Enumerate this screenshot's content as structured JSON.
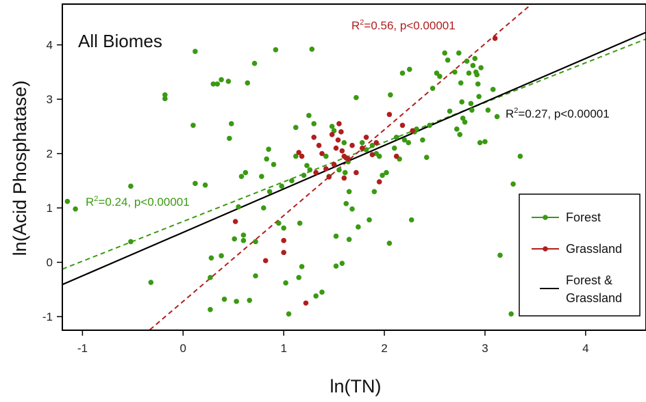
{
  "chart_data": {
    "type": "scatter",
    "title": "All Biomes",
    "xlabel": "ln(TN)",
    "ylabel": "ln(Acid Phosphatase)",
    "xlim": [
      -1.2,
      4.6
    ],
    "ylim": [
      -1.25,
      4.75
    ],
    "x_ticks": [
      "-1",
      "0",
      "1",
      "2",
      "3",
      "4"
    ],
    "y_ticks": [
      "-1",
      "0",
      "1",
      "2",
      "3",
      "4"
    ],
    "grid": false,
    "legend_position": "bottom-right",
    "colors": {
      "forest": "#3a9a12",
      "grassland": "#b01e1e",
      "combined": "#000000"
    },
    "series": [
      {
        "name": "Forest",
        "color": "#3a9a12",
        "points": [
          [
            -1.15,
            1.12
          ],
          [
            -1.07,
            0.98
          ],
          [
            -0.52,
            1.4
          ],
          [
            -0.52,
            0.38
          ],
          [
            -0.32,
            -0.37
          ],
          [
            -0.18,
            3.08
          ],
          [
            -0.18,
            3.01
          ],
          [
            0.1,
            2.52
          ],
          [
            0.12,
            3.88
          ],
          [
            0.12,
            1.45
          ],
          [
            0.22,
            1.42
          ],
          [
            0.27,
            -0.28
          ],
          [
            0.27,
            -0.87
          ],
          [
            0.28,
            0.08
          ],
          [
            0.3,
            3.28
          ],
          [
            0.34,
            3.28
          ],
          [
            0.38,
            3.36
          ],
          [
            0.38,
            0.12
          ],
          [
            0.41,
            -0.68
          ],
          [
            0.45,
            3.33
          ],
          [
            0.46,
            2.28
          ],
          [
            0.48,
            2.55
          ],
          [
            0.51,
            0.43
          ],
          [
            0.53,
            -0.72
          ],
          [
            0.55,
            1.02
          ],
          [
            0.58,
            1.58
          ],
          [
            0.6,
            0.4
          ],
          [
            0.6,
            0.5
          ],
          [
            0.62,
            1.65
          ],
          [
            0.64,
            3.3
          ],
          [
            0.66,
            -0.7
          ],
          [
            0.71,
            3.66
          ],
          [
            0.72,
            0.38
          ],
          [
            0.72,
            -0.25
          ],
          [
            0.78,
            1.58
          ],
          [
            0.8,
            1.0
          ],
          [
            0.83,
            1.9
          ],
          [
            0.85,
            2.08
          ],
          [
            0.86,
            1.3
          ],
          [
            0.9,
            1.8
          ],
          [
            0.92,
            3.91
          ],
          [
            0.95,
            0.72
          ],
          [
            0.98,
            1.4
          ],
          [
            1.0,
            0.63
          ],
          [
            1.02,
            -0.38
          ],
          [
            1.05,
            -0.95
          ],
          [
            1.08,
            1.5
          ],
          [
            1.12,
            1.95
          ],
          [
            1.12,
            2.48
          ],
          [
            1.15,
            -0.28
          ],
          [
            1.16,
            0.72
          ],
          [
            1.18,
            -0.08
          ],
          [
            1.2,
            1.6
          ],
          [
            1.23,
            1.78
          ],
          [
            1.25,
            2.7
          ],
          [
            1.26,
            1.7
          ],
          [
            1.28,
            3.92
          ],
          [
            1.3,
            2.55
          ],
          [
            1.32,
            -0.62
          ],
          [
            1.38,
            -0.55
          ],
          [
            1.42,
            1.95
          ],
          [
            1.45,
            1.58
          ],
          [
            1.48,
            2.5
          ],
          [
            1.5,
            2.42
          ],
          [
            1.52,
            0.48
          ],
          [
            1.52,
            -0.07
          ],
          [
            1.55,
            1.7
          ],
          [
            1.58,
            -0.02
          ],
          [
            1.6,
            2.2
          ],
          [
            1.61,
            1.65
          ],
          [
            1.62,
            1.08
          ],
          [
            1.64,
            1.85
          ],
          [
            1.65,
            1.3
          ],
          [
            1.65,
            0.42
          ],
          [
            1.68,
            0.98
          ],
          [
            1.72,
            3.03
          ],
          [
            1.74,
            0.65
          ],
          [
            1.78,
            2.2
          ],
          [
            1.82,
            2.07
          ],
          [
            1.85,
            0.78
          ],
          [
            1.88,
            2.15
          ],
          [
            1.9,
            1.3
          ],
          [
            1.92,
            2.0
          ],
          [
            1.95,
            1.95
          ],
          [
            1.98,
            1.6
          ],
          [
            2.02,
            1.65
          ],
          [
            2.05,
            0.35
          ],
          [
            2.06,
            3.08
          ],
          [
            2.1,
            2.1
          ],
          [
            2.12,
            2.3
          ],
          [
            2.15,
            1.9
          ],
          [
            2.18,
            3.48
          ],
          [
            2.2,
            2.25
          ],
          [
            2.24,
            2.2
          ],
          [
            2.25,
            3.55
          ],
          [
            2.27,
            0.78
          ],
          [
            2.3,
            2.4
          ],
          [
            2.32,
            2.45
          ],
          [
            2.38,
            2.25
          ],
          [
            2.42,
            1.93
          ],
          [
            2.45,
            2.52
          ],
          [
            2.48,
            3.2
          ],
          [
            2.52,
            3.48
          ],
          [
            2.55,
            3.42
          ],
          [
            2.6,
            3.85
          ],
          [
            2.63,
            3.72
          ],
          [
            2.65,
            2.78
          ],
          [
            2.7,
            3.5
          ],
          [
            2.72,
            2.45
          ],
          [
            2.74,
            3.85
          ],
          [
            2.75,
            2.35
          ],
          [
            2.76,
            3.3
          ],
          [
            2.77,
            2.95
          ],
          [
            2.78,
            2.65
          ],
          [
            2.8,
            2.58
          ],
          [
            2.82,
            3.7
          ],
          [
            2.84,
            3.48
          ],
          [
            2.86,
            2.92
          ],
          [
            2.87,
            2.8
          ],
          [
            2.88,
            3.62
          ],
          [
            2.9,
            3.75
          ],
          [
            2.91,
            3.5
          ],
          [
            2.92,
            3.45
          ],
          [
            2.93,
            3.28
          ],
          [
            2.94,
            3.05
          ],
          [
            2.95,
            2.2
          ],
          [
            2.96,
            3.58
          ],
          [
            3.0,
            2.22
          ],
          [
            3.03,
            2.8
          ],
          [
            3.08,
            3.18
          ],
          [
            3.12,
            2.68
          ],
          [
            3.15,
            0.13
          ],
          [
            3.26,
            -0.95
          ],
          [
            3.28,
            1.44
          ],
          [
            3.35,
            1.95
          ]
        ]
      },
      {
        "name": "Grassland",
        "color": "#b01e1e",
        "points": [
          [
            0.52,
            0.75
          ],
          [
            0.82,
            0.03
          ],
          [
            1.0,
            0.4
          ],
          [
            1.0,
            0.18
          ],
          [
            1.15,
            2.02
          ],
          [
            1.18,
            1.95
          ],
          [
            1.22,
            -0.75
          ],
          [
            1.3,
            2.3
          ],
          [
            1.32,
            1.65
          ],
          [
            1.35,
            2.15
          ],
          [
            1.38,
            2.0
          ],
          [
            1.42,
            1.72
          ],
          [
            1.45,
            1.57
          ],
          [
            1.48,
            2.35
          ],
          [
            1.5,
            1.8
          ],
          [
            1.52,
            2.1
          ],
          [
            1.54,
            2.25
          ],
          [
            1.55,
            2.55
          ],
          [
            1.57,
            2.4
          ],
          [
            1.58,
            2.05
          ],
          [
            1.6,
            1.95
          ],
          [
            1.6,
            1.55
          ],
          [
            1.62,
            1.92
          ],
          [
            1.64,
            1.9
          ],
          [
            1.68,
            2.15
          ],
          [
            1.72,
            1.65
          ],
          [
            1.78,
            2.1
          ],
          [
            1.82,
            2.3
          ],
          [
            1.88,
            1.98
          ],
          [
            1.92,
            2.2
          ],
          [
            1.95,
            1.48
          ],
          [
            2.05,
            2.72
          ],
          [
            2.12,
            1.95
          ],
          [
            2.18,
            2.52
          ],
          [
            2.28,
            2.42
          ],
          [
            3.1,
            4.12
          ]
        ]
      }
    ],
    "fits": [
      {
        "series": "Forest",
        "slope": 0.73,
        "intercept": 0.75,
        "r2": 0.24,
        "style": "dashed",
        "label": [
          "R",
          "2",
          "=0.24, p<0.00001"
        ]
      },
      {
        "series": "Grassland",
        "slope": 1.58,
        "intercept": -0.72,
        "r2": 0.56,
        "style": "dashed",
        "label": [
          "R",
          "2",
          "=0.56, p<0.00001"
        ]
      },
      {
        "series": "Forest & Grassland",
        "slope": 0.8,
        "intercept": 0.55,
        "r2": 0.27,
        "style": "solid",
        "label": [
          "R",
          "2",
          "=0.27, p<0.00001"
        ]
      }
    ],
    "legend": [
      {
        "label": "Forest",
        "marker": "dot-line",
        "color": "#3a9a12"
      },
      {
        "label": "Grassland",
        "marker": "dot-line",
        "color": "#b01e1e"
      },
      {
        "label": [
          "Forest &",
          "Grassland"
        ],
        "marker": "line",
        "color": "#000000"
      }
    ]
  }
}
